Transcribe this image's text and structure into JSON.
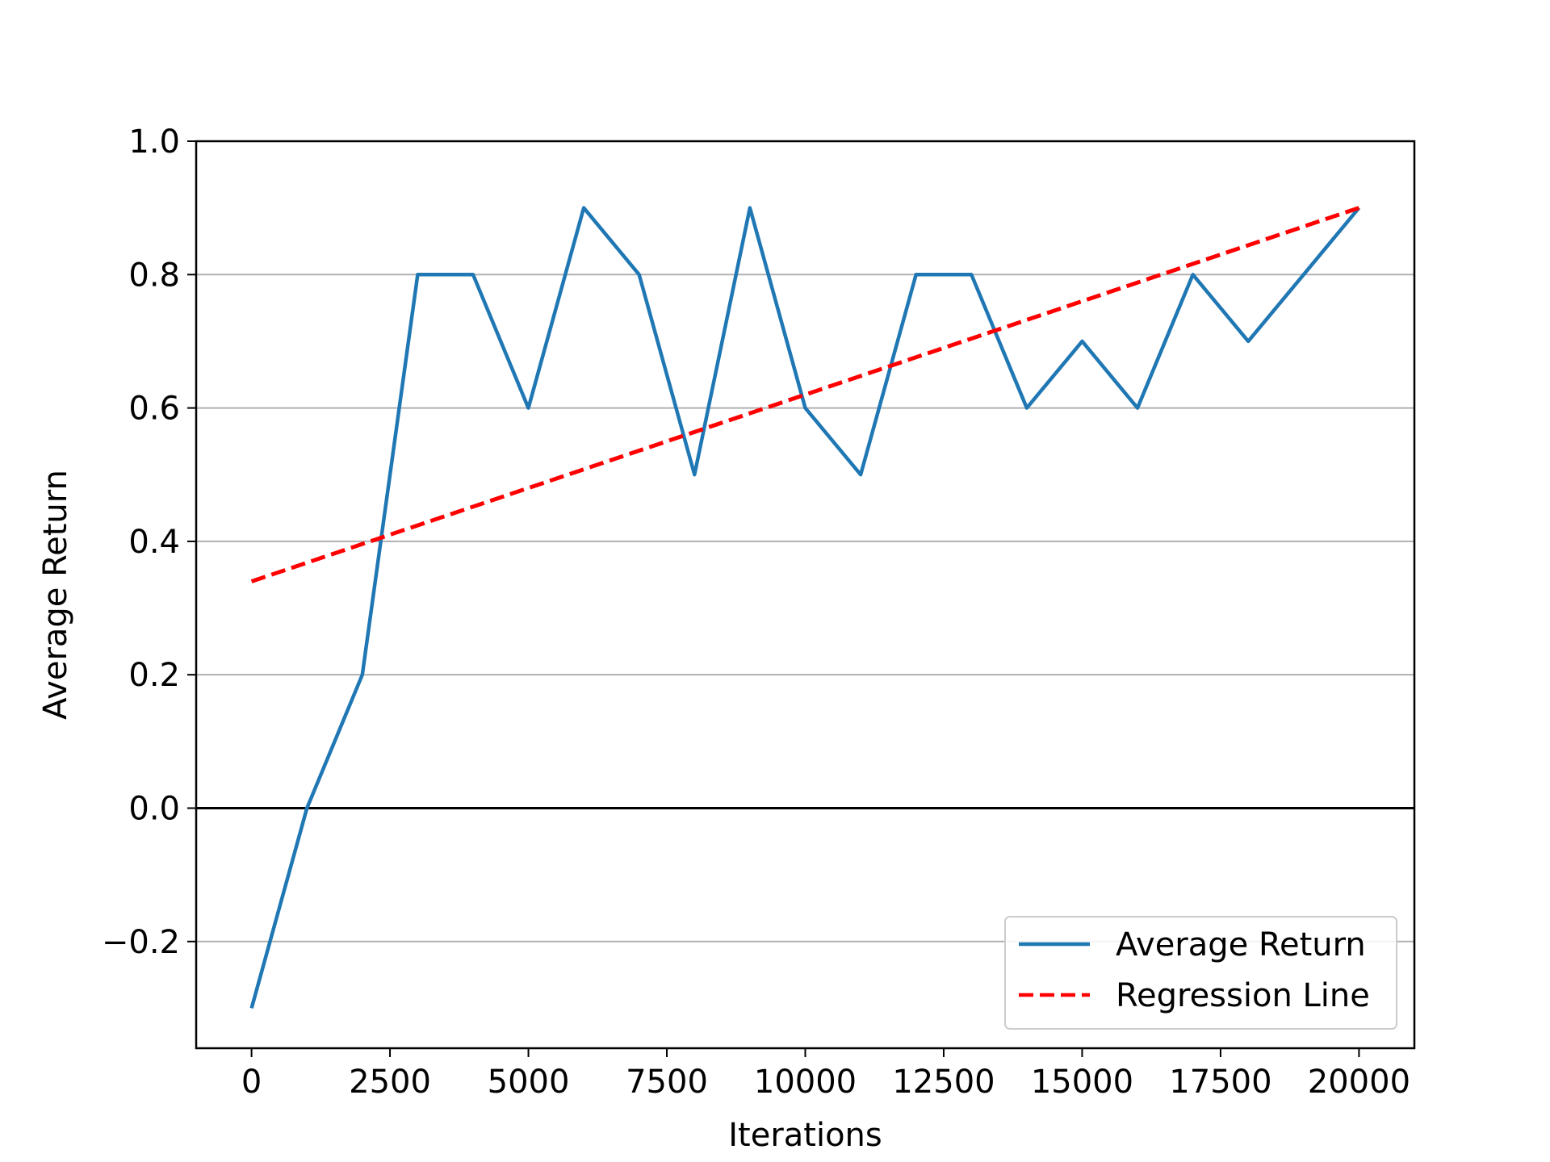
{
  "chart_data": {
    "type": "line",
    "title": "",
    "xlabel": "Iterations",
    "ylabel": "Average Return",
    "xlim": [
      -1000,
      21000
    ],
    "ylim": [
      -0.36,
      1.0
    ],
    "xticks": [
      0,
      2500,
      5000,
      7500,
      10000,
      12500,
      15000,
      17500,
      20000
    ],
    "xtick_labels": [
      "0",
      "2500",
      "5000",
      "7500",
      "10000",
      "12500",
      "15000",
      "17500",
      "20000"
    ],
    "yticks": [
      -0.2,
      0.0,
      0.2,
      0.4,
      0.6,
      0.8,
      1.0
    ],
    "ytick_labels": [
      "−0.2",
      "0.0",
      "0.2",
      "0.4",
      "0.6",
      "0.8",
      "1.0"
    ],
    "grid": "horizontal",
    "zero_line": true,
    "legend_position": "lower right",
    "series": [
      {
        "name": "Average Return",
        "color": "#1f77b4",
        "style": "solid",
        "x": [
          0,
          1000,
          2000,
          3000,
          4000,
          5000,
          6000,
          7000,
          8000,
          9000,
          10000,
          11000,
          12000,
          13000,
          14000,
          15000,
          16000,
          17000,
          18000,
          19000,
          20000
        ],
        "y": [
          -0.3,
          0.0,
          0.2,
          0.8,
          0.8,
          0.6,
          0.9,
          0.8,
          0.5,
          0.9,
          0.6,
          0.5,
          0.8,
          0.8,
          0.6,
          0.7,
          0.6,
          0.8,
          0.7,
          0.8,
          0.9
        ]
      },
      {
        "name": "Regression Line",
        "color": "#ff0000",
        "style": "dashed",
        "x": [
          0,
          20000
        ],
        "y": [
          0.34,
          0.9
        ]
      }
    ]
  }
}
